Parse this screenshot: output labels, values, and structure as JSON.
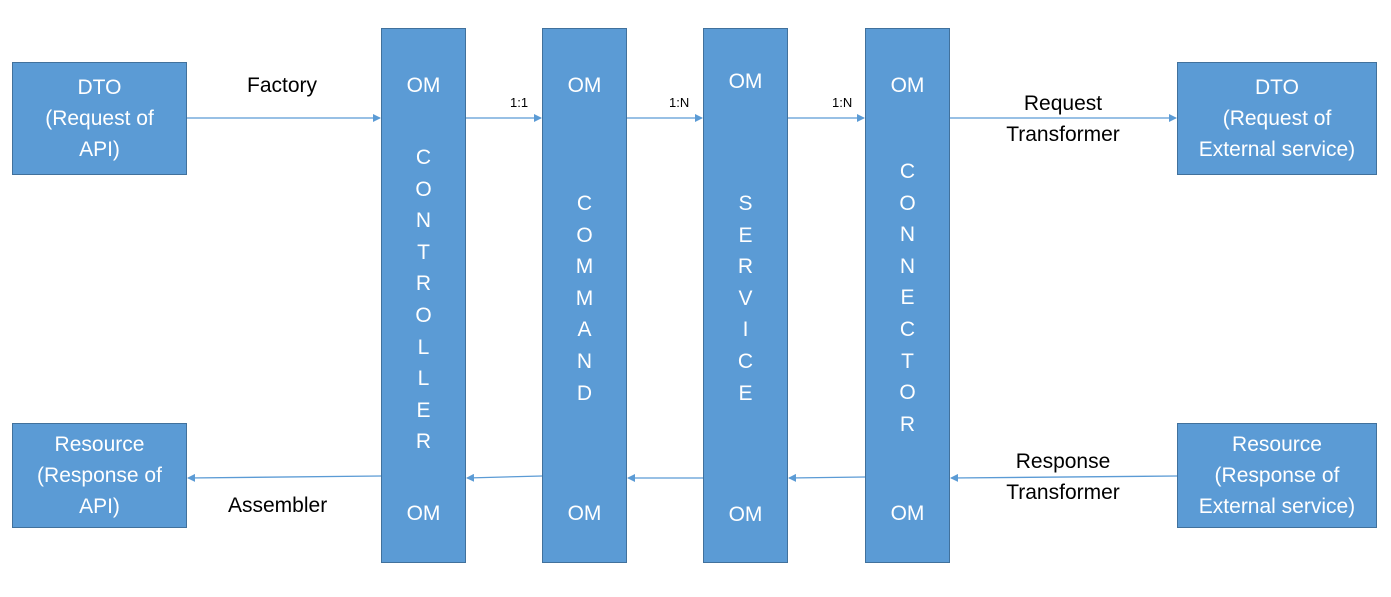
{
  "dto_api": {
    "line1": "DTO",
    "line2": "(Request of",
    "line3": "API)"
  },
  "dto_external": {
    "line1": "DTO",
    "line2": "(Request of",
    "line3": "External service)"
  },
  "resource_api": {
    "line1": "Resource",
    "line2": "(Response of",
    "line3": "API)"
  },
  "resource_external": {
    "line1": "Resource",
    "line2": "(Response of",
    "line3": "External service)"
  },
  "columns": [
    {
      "top_om": "OM",
      "bottom_om": "OM",
      "letters": [
        "C",
        "O",
        "N",
        "T",
        "R",
        "O",
        "L",
        "L",
        "E",
        "R"
      ]
    },
    {
      "top_om": "OM",
      "bottom_om": "OM",
      "letters": [
        "C",
        "O",
        "M",
        "M",
        "A",
        "N",
        "D"
      ]
    },
    {
      "top_om": "OM",
      "bottom_om": "OM",
      "letters": [
        "S",
        "E",
        "R",
        "V",
        "I",
        "C",
        "E"
      ]
    },
    {
      "top_om": "OM",
      "bottom_om": "OM",
      "letters": [
        "C",
        "O",
        "N",
        "N",
        "E",
        "C",
        "T",
        "O",
        "R"
      ]
    }
  ],
  "labels": {
    "factory": "Factory",
    "assembler": "Assembler",
    "request_transformer_1": "Request",
    "request_transformer_2": "Transformer",
    "response_transformer_1": "Response",
    "response_transformer_2": "Transformer"
  },
  "ratios": {
    "controller_command": "1:1",
    "command_service": "1:N",
    "service_connector": "1:N"
  },
  "colors": {
    "box_fill": "#5b9bd5",
    "box_border": "#41719c",
    "arrow": "#5b9bd5"
  }
}
